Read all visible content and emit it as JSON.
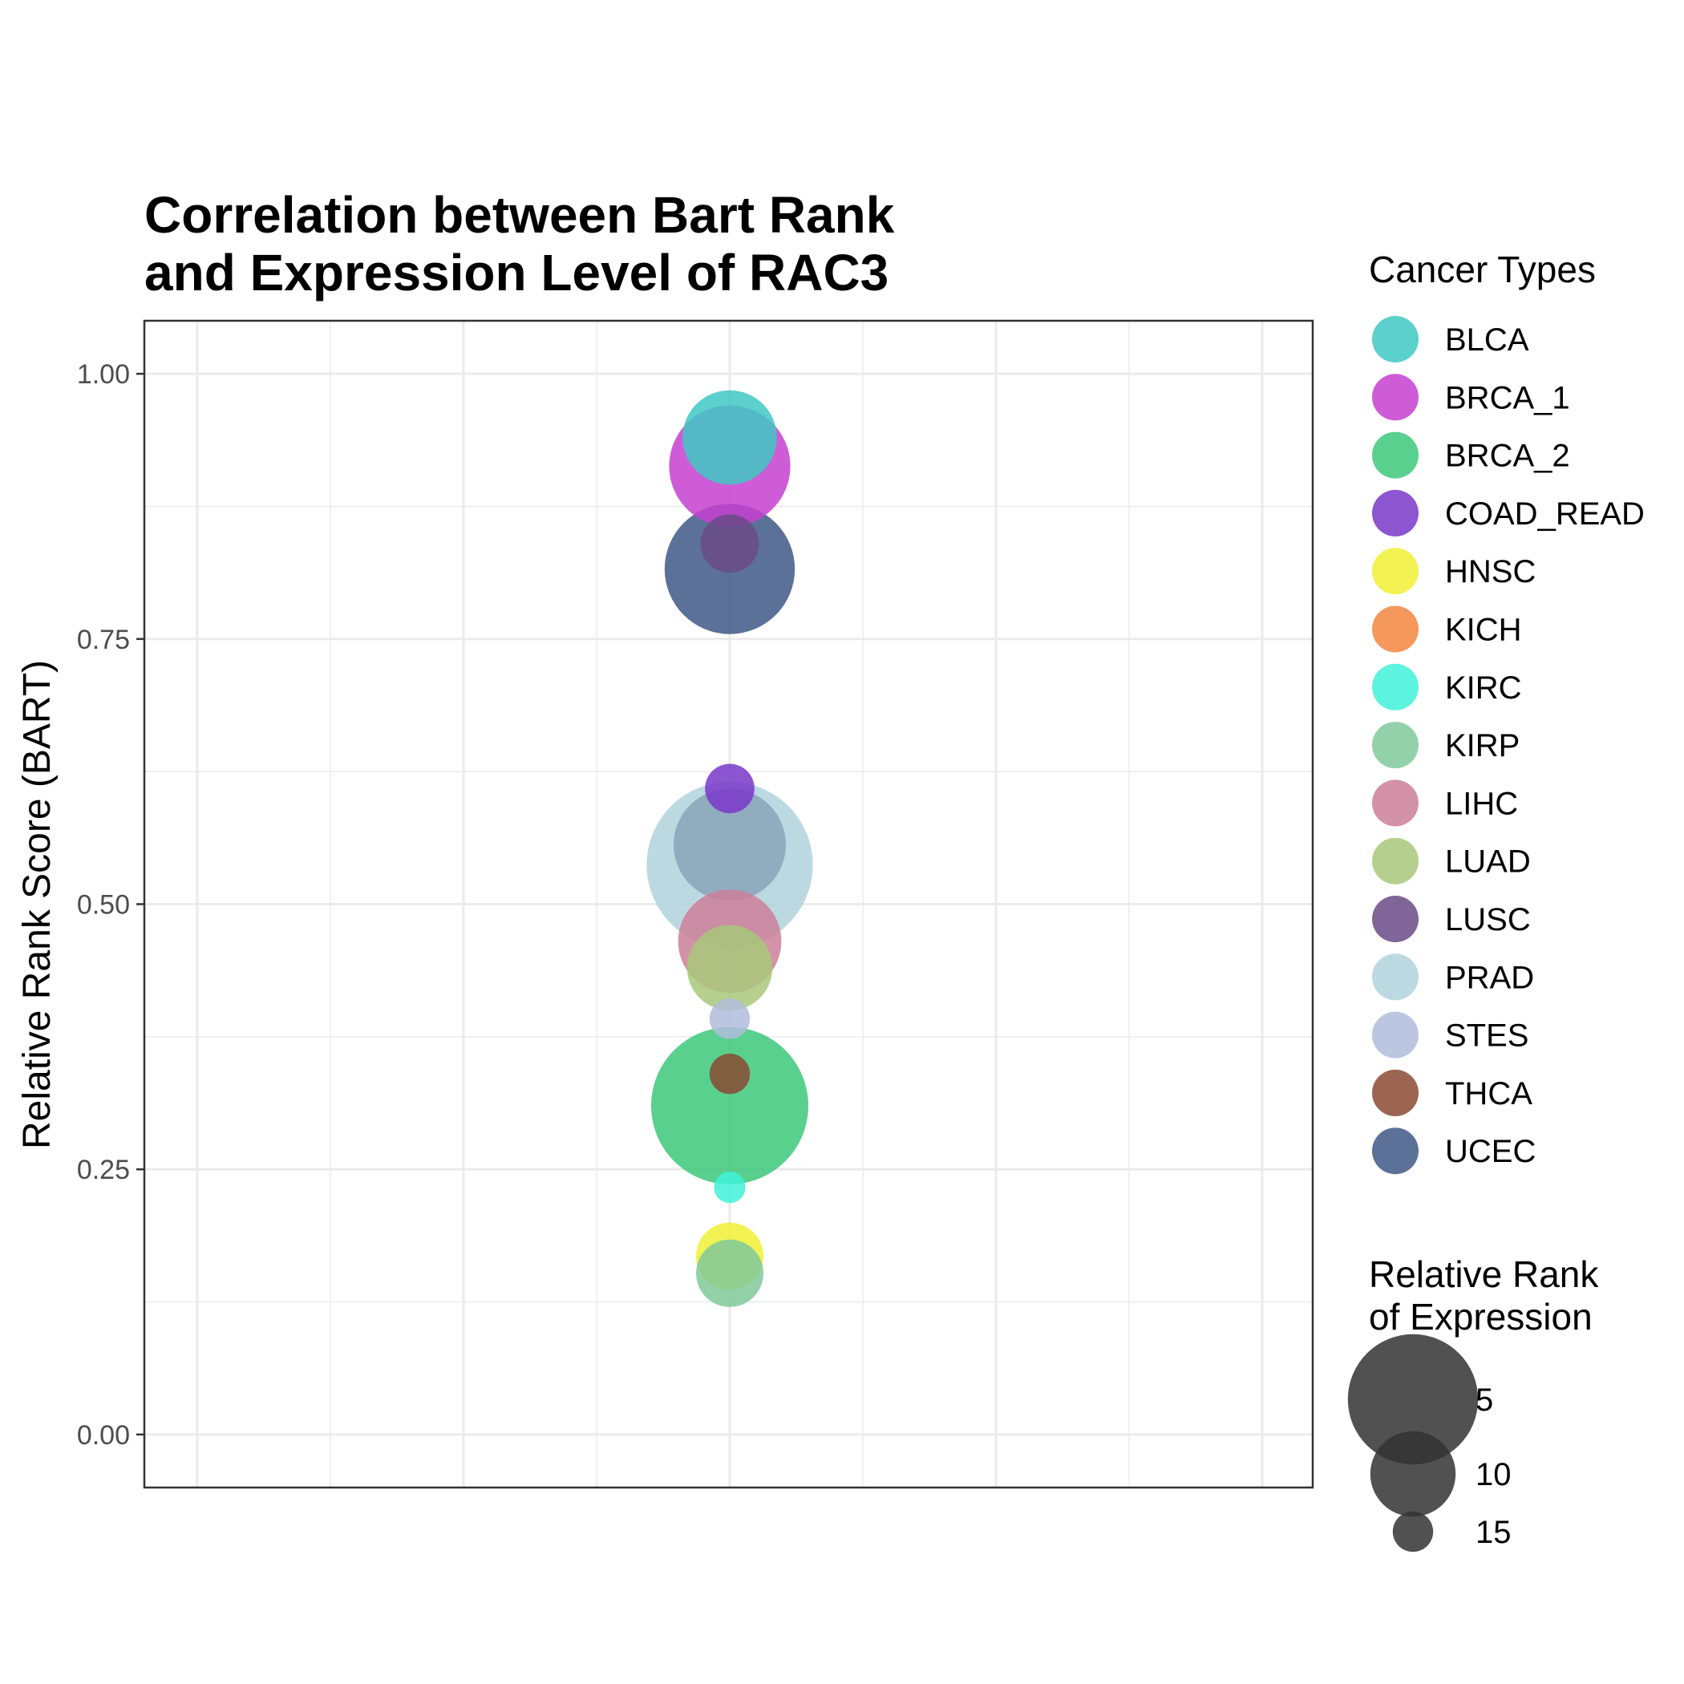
{
  "chart_data": {
    "type": "scatter",
    "title": [
      "Correlation between Bart Rank",
      "and Expression Level of RAC3"
    ],
    "xlabel": "",
    "ylabel": "Relative Rank Score (BART)",
    "ylim": [
      -0.05,
      1.05
    ],
    "yticks": [
      0,
      0.25,
      0.5,
      0.75,
      1.0
    ],
    "ytick_labels": [
      "0.00",
      "0.25",
      "0.50",
      "0.75",
      "1.00"
    ],
    "grid": true,
    "legend_position": "right",
    "color_legend_title": "Cancer Types",
    "size_legend_title": [
      "Relative Rank",
      "of Expression"
    ],
    "size_legend": [
      {
        "label": "5",
        "value": 5
      },
      {
        "label": "10",
        "value": 10
      },
      {
        "label": "15",
        "value": 15
      }
    ],
    "series": [
      {
        "name": "BLCA",
        "color": "#3ec8c4",
        "y": 0.94,
        "rank": 9
      },
      {
        "name": "BRCA_1",
        "color": "#c63fd0",
        "y": 0.913,
        "rank": 6
      },
      {
        "name": "BRCA_2",
        "color": "#3cc87a",
        "y": 0.31,
        "rank": 2
      },
      {
        "name": "COAD_READ",
        "color": "#7a37c9",
        "y": 0.609,
        "rank": 14
      },
      {
        "name": "HNSC",
        "color": "#f0f035",
        "y": 0.168,
        "rank": 12
      },
      {
        "name": "KICH",
        "color": "#f38640",
        "y": null,
        "rank": null
      },
      {
        "name": "KIRC",
        "color": "#40f2d8",
        "y": 0.233,
        "rank": 16
      },
      {
        "name": "KIRP",
        "color": "#80c99b",
        "y": 0.152,
        "rank": 12
      },
      {
        "name": "LIHC",
        "color": "#cc7f99",
        "y": 0.465,
        "rank": 8
      },
      {
        "name": "LUAD",
        "color": "#a8c87a",
        "y": 0.44,
        "rank": 10
      },
      {
        "name": "LUSC",
        "color": "#6a4a86",
        "y": 0.84,
        "rank": 13
      },
      {
        "name": "PRAD",
        "color": "#b0d2dc",
        "y": 0.537,
        "rank": 1
      },
      {
        "name": "STES",
        "color": "#b0bcdc",
        "y": 0.392,
        "rank": 15
      },
      {
        "name": "THCA",
        "color": "#8a4a34",
        "y": 0.34,
        "rank": 15
      },
      {
        "name": "UCEC",
        "color": "#3f5886",
        "y": 0.816,
        "rank": 5
      },
      {
        "name": "",
        "color": "#8aa2b8",
        "y": 0.556,
        "rank": 7
      }
    ]
  }
}
